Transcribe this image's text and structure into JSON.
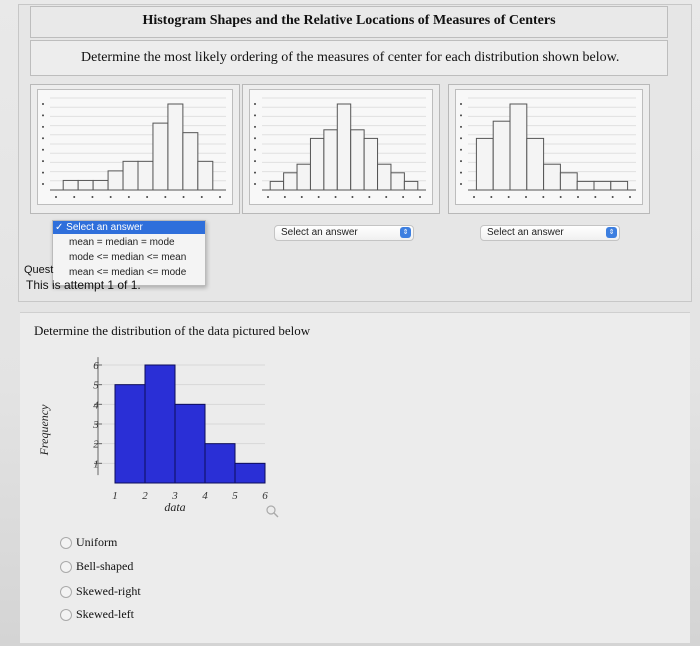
{
  "question1": {
    "title": "Histogram Shapes and the Relative Locations of Measures of Centers",
    "instruction": "Determine the most likely ordering of the measures of center for each distribution shown below.",
    "panels": [
      {
        "select_value": "Select an answer",
        "shape": "skewed-left",
        "bars": [
          1,
          1,
          1,
          2,
          3,
          3,
          7,
          9,
          6,
          3
        ]
      },
      {
        "select_value": "Select an answer",
        "shape": "bell",
        "bars": [
          1,
          2,
          3,
          6,
          7,
          10,
          7,
          6,
          3,
          2,
          1
        ]
      },
      {
        "select_value": "Select an answer",
        "shape": "skewed-right",
        "bars": [
          6,
          8,
          10,
          6,
          3,
          2,
          1,
          1,
          1
        ]
      }
    ],
    "dropdown": {
      "selected": "Select an answer",
      "options": [
        "mean = median = mode",
        "mode <= median <= mean",
        "mean <= median <= mode"
      ]
    },
    "question_label": "Quest",
    "attempt": "This is attempt 1 of 1."
  },
  "question2": {
    "text": "Determine the distribution of the data pictured below",
    "options": [
      "Uniform",
      "Bell-shaped",
      "Skewed-right",
      "Skewed-left"
    ]
  },
  "chart_data": {
    "type": "bar",
    "categories": [
      "1-2",
      "2-3",
      "3-4",
      "4-5",
      "5-6"
    ],
    "values": [
      5,
      6,
      4,
      2,
      1
    ],
    "xlabel": "data",
    "ylabel": "Frequency",
    "xticks": [
      "1",
      "2",
      "3",
      "4",
      "5",
      "6"
    ],
    "yticks": [
      "1",
      "2",
      "3",
      "4",
      "5",
      "6"
    ],
    "xlim": [
      1,
      6
    ],
    "ylim": [
      0,
      6
    ],
    "bar_color": "#2a2fd6",
    "grid": true
  },
  "icons": {
    "check": "checkmark-icon",
    "spinner": "select-spinner-icon",
    "zoom": "magnifier-icon"
  }
}
